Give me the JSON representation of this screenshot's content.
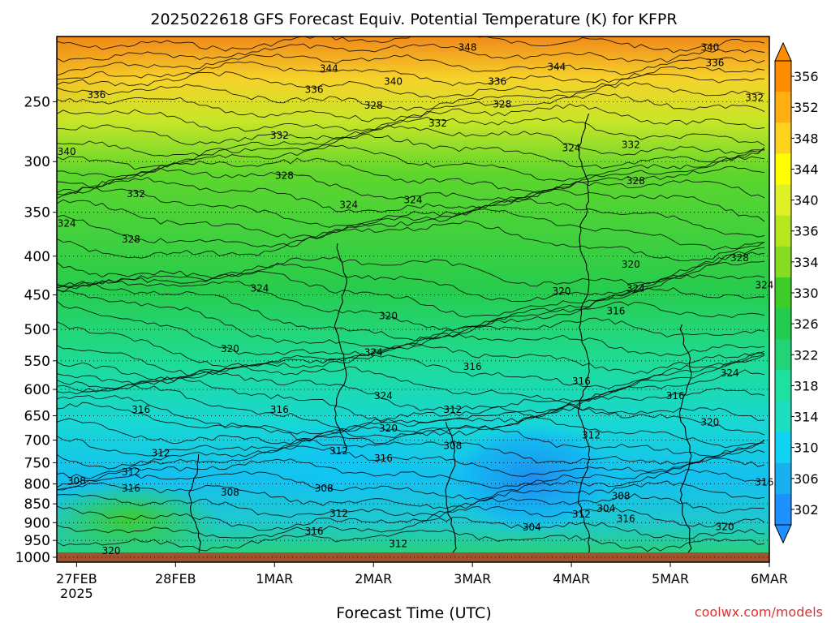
{
  "chart_data": {
    "type": "heatmap",
    "title": "2025022618 GFS Forecast Equiv. Potential Temperature (K) for KFPR",
    "xlabel": "Forecast Time (UTC)",
    "ylabel": "",
    "watermark": "coolwx.com/models",
    "x_ticks": [
      "27FEB",
      "28FEB",
      "1MAR",
      "2MAR",
      "3MAR",
      "4MAR",
      "5MAR",
      "6MAR"
    ],
    "x_tick_year": "2025",
    "x_range_days": [
      -0.2,
      7.0
    ],
    "y_scale": "log-pressure",
    "y_ticks": [
      250,
      300,
      350,
      400,
      450,
      500,
      550,
      600,
      650,
      700,
      750,
      800,
      850,
      900,
      950,
      1000
    ],
    "y_range_hPa": [
      1015,
      205
    ],
    "colorbar_labels": [
      302,
      306,
      310,
      314,
      318,
      322,
      326,
      330,
      334,
      336,
      340,
      344,
      348,
      352,
      356
    ],
    "colorbar_colors": [
      "#1e90ff",
      "#19b0f0",
      "#10d2f5",
      "#1edcc0",
      "#1ee1a0",
      "#22d478",
      "#22cc4c",
      "#3dcc28",
      "#85dc20",
      "#b5e61e",
      "#e0f028",
      "#ffff00",
      "#ffd21e",
      "#ffaf14",
      "#ff8c00"
    ],
    "contour_interval_K": 4,
    "contour_labels": [
      {
        "text": "348",
        "t": 3.95,
        "p": 212
      },
      {
        "text": "340",
        "t": 6.4,
        "p": 212
      },
      {
        "text": "336",
        "t": 6.45,
        "p": 222
      },
      {
        "text": "344",
        "t": 2.55,
        "p": 226
      },
      {
        "text": "344",
        "t": 4.85,
        "p": 225
      },
      {
        "text": "340",
        "t": 3.2,
        "p": 235
      },
      {
        "text": "336",
        "t": 4.25,
        "p": 235
      },
      {
        "text": "336",
        "t": 0.2,
        "p": 245
      },
      {
        "text": "336",
        "t": 2.4,
        "p": 241
      },
      {
        "text": "332",
        "t": 6.85,
        "p": 247
      },
      {
        "text": "328",
        "t": 3.0,
        "p": 253
      },
      {
        "text": "328",
        "t": 4.3,
        "p": 252
      },
      {
        "text": "332",
        "t": 3.65,
        "p": 267
      },
      {
        "text": "332",
        "t": 2.05,
        "p": 277
      },
      {
        "text": "324",
        "t": 5.0,
        "p": 288
      },
      {
        "text": "332",
        "t": 5.6,
        "p": 285
      },
      {
        "text": "340",
        "t": -0.1,
        "p": 291
      },
      {
        "text": "328",
        "t": 2.1,
        "p": 313
      },
      {
        "text": "328",
        "t": 5.65,
        "p": 318
      },
      {
        "text": "332",
        "t": 0.6,
        "p": 331
      },
      {
        "text": "324",
        "t": 2.75,
        "p": 342
      },
      {
        "text": "324",
        "t": 3.4,
        "p": 337
      },
      {
        "text": "324",
        "t": -0.1,
        "p": 362
      },
      {
        "text": "328",
        "t": 0.55,
        "p": 380
      },
      {
        "text": "328",
        "t": 6.7,
        "p": 402
      },
      {
        "text": "320",
        "t": 5.6,
        "p": 410
      },
      {
        "text": "324",
        "t": 6.95,
        "p": 437
      },
      {
        "text": "324",
        "t": 1.85,
        "p": 441
      },
      {
        "text": "324",
        "t": 5.65,
        "p": 441
      },
      {
        "text": "320",
        "t": 4.9,
        "p": 445
      },
      {
        "text": "316",
        "t": 5.45,
        "p": 473
      },
      {
        "text": "320",
        "t": 3.15,
        "p": 480
      },
      {
        "text": "320",
        "t": 1.55,
        "p": 530
      },
      {
        "text": "324",
        "t": 3.0,
        "p": 536
      },
      {
        "text": "316",
        "t": 4.0,
        "p": 560
      },
      {
        "text": "324",
        "t": 6.6,
        "p": 571
      },
      {
        "text": "316",
        "t": 5.1,
        "p": 585
      },
      {
        "text": "324",
        "t": 3.1,
        "p": 612
      },
      {
        "text": "316",
        "t": 6.05,
        "p": 612
      },
      {
        "text": "316",
        "t": 0.65,
        "p": 638
      },
      {
        "text": "316",
        "t": 2.05,
        "p": 638
      },
      {
        "text": "312",
        "t": 3.8,
        "p": 638
      },
      {
        "text": "320",
        "t": 6.4,
        "p": 663
      },
      {
        "text": "320",
        "t": 3.15,
        "p": 675
      },
      {
        "text": "312",
        "t": 5.2,
        "p": 690
      },
      {
        "text": "308",
        "t": 3.8,
        "p": 712
      },
      {
        "text": "312",
        "t": 2.65,
        "p": 724
      },
      {
        "text": "312",
        "t": 0.85,
        "p": 728
      },
      {
        "text": "316",
        "t": 3.1,
        "p": 740
      },
      {
        "text": "312",
        "t": 0.55,
        "p": 772
      },
      {
        "text": "308",
        "t": 0.0,
        "p": 793
      },
      {
        "text": "316",
        "t": 0.55,
        "p": 811
      },
      {
        "text": "308",
        "t": 2.5,
        "p": 811
      },
      {
        "text": "308",
        "t": 1.55,
        "p": 821
      },
      {
        "text": "316",
        "t": 6.95,
        "p": 796
      },
      {
        "text": "308",
        "t": 5.5,
        "p": 830
      },
      {
        "text": "304",
        "t": 5.35,
        "p": 862
      },
      {
        "text": "312",
        "t": 2.65,
        "p": 875
      },
      {
        "text": "312",
        "t": 5.1,
        "p": 877
      },
      {
        "text": "316",
        "t": 5.55,
        "p": 889
      },
      {
        "text": "304",
        "t": 4.6,
        "p": 913
      },
      {
        "text": "320",
        "t": 6.55,
        "p": 912
      },
      {
        "text": "316",
        "t": 2.4,
        "p": 924
      },
      {
        "text": "312",
        "t": 3.25,
        "p": 960
      },
      {
        "text": "320",
        "t": 0.35,
        "p": 980
      }
    ],
    "grid": true,
    "legend": "colorbar-right"
  }
}
